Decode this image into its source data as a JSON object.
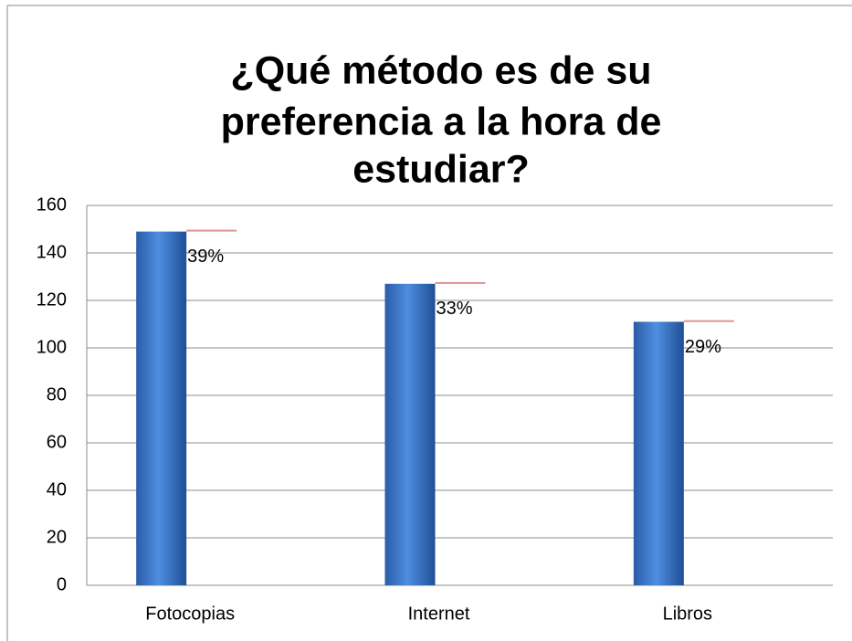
{
  "chart_data": {
    "type": "bar",
    "title": [
      "¿Qué método es de su",
      "preferencia a la hora de",
      "estudiar?"
    ],
    "categories": [
      "Fotocopias",
      "Internet",
      "Libros"
    ],
    "series": [
      {
        "color": "#3a72c4",
        "values": [
          149,
          127,
          111
        ]
      },
      {
        "color": "#c0504d",
        "values": [
          0.39,
          0.33,
          0.29
        ],
        "value_labels": [
          "39%",
          "33%",
          "29%"
        ]
      }
    ],
    "stacked": true,
    "ylim": [
      0,
      160
    ],
    "yticks": [
      0,
      20,
      40,
      60,
      80,
      100,
      120,
      140,
      160
    ],
    "grid": true
  }
}
